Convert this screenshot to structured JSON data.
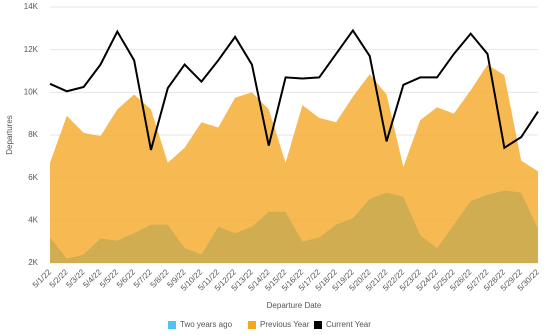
{
  "chart_data": {
    "type": "area",
    "x_label": "Departure Date",
    "y_label": "Departures",
    "categories": [
      "5/1/22",
      "5/2/22",
      "5/3/22",
      "5/4/22",
      "5/5/22",
      "5/6/22",
      "5/7/22",
      "5/8/22",
      "5/9/22",
      "5/10/22",
      "5/11/22",
      "5/12/22",
      "5/13/22",
      "5/14/22",
      "5/15/22",
      "5/16/22",
      "5/17/22",
      "5/18/22",
      "5/19/22",
      "5/20/22",
      "5/21/22",
      "5/22/22",
      "5/23/22",
      "5/24/22",
      "5/25/22",
      "5/26/22",
      "5/27/22",
      "5/28/22",
      "5/29/22",
      "5/30/22"
    ],
    "series": [
      {
        "name": "Two years ago",
        "color": "#4fc3f7",
        "style": "area",
        "values": [
          3200,
          2200,
          2400,
          3150,
          3050,
          3400,
          3800,
          3800,
          2700,
          2400,
          3700,
          3400,
          3700,
          4400,
          4400,
          3000,
          3200,
          3800,
          4100,
          5000,
          5300,
          5100,
          3300,
          2700,
          3800,
          4900,
          5200,
          5400,
          5300,
          3600
        ]
      },
      {
        "name": "Previous Year",
        "color": "#f5a623",
        "style": "area",
        "values": [
          6700,
          8900,
          8100,
          7950,
          9200,
          9900,
          9200,
          6700,
          7400,
          8600,
          8350,
          9750,
          10000,
          9200,
          6700,
          9400,
          8800,
          8600,
          9800,
          10850,
          9900,
          6500,
          8700,
          9300,
          9000,
          10100,
          11300,
          10800,
          6800,
          6300
        ]
      },
      {
        "name": "Current Year",
        "color": "#000000",
        "style": "line",
        "values": [
          10400,
          10050,
          10250,
          11300,
          12850,
          11500,
          7300,
          10200,
          11300,
          10500,
          11500,
          12600,
          11300,
          7500,
          10700,
          10650,
          10700,
          11800,
          12900,
          11700,
          7700,
          10350,
          10700,
          10700,
          11800,
          12750,
          11800,
          7400,
          7900,
          9100
        ]
      }
    ],
    "ylim": [
      2000,
      14000
    ],
    "yticks": [
      {
        "value": 2000,
        "label": "2K"
      },
      {
        "value": 4000,
        "label": "4K"
      },
      {
        "value": 6000,
        "label": "6K"
      },
      {
        "value": 8000,
        "label": "8K"
      },
      {
        "value": 10000,
        "label": "10K"
      },
      {
        "value": 12000,
        "label": "12K"
      },
      {
        "value": 14000,
        "label": "14K"
      }
    ],
    "grid": true,
    "legend": "bottom"
  }
}
